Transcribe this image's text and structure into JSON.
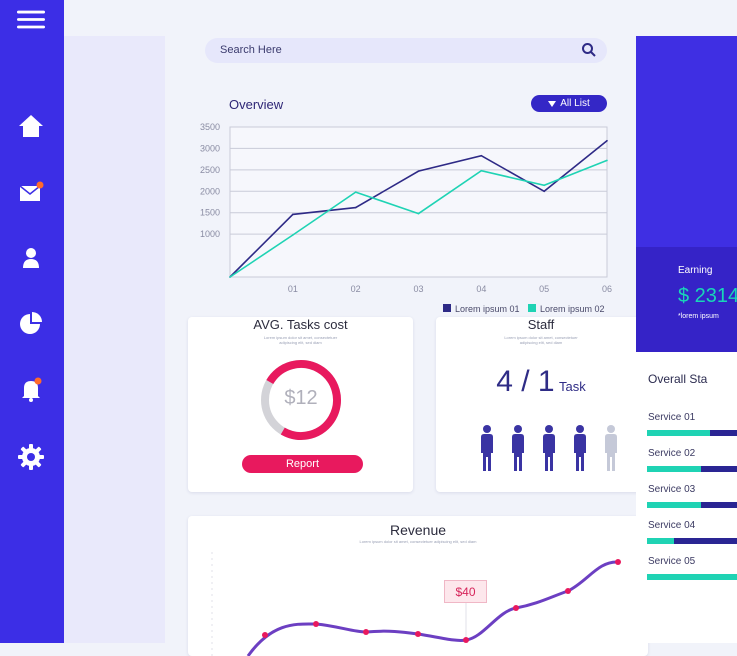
{
  "sidebar": {
    "icons": [
      "menu-icon",
      "home-icon",
      "mail-icon",
      "user-icon",
      "pie-chart-icon",
      "bell-icon",
      "gear-icon"
    ],
    "notification_color": "#ff6a2b"
  },
  "search": {
    "placeholder": "Search Here"
  },
  "overview": {
    "title": "Overview",
    "filter_label": "All List"
  },
  "chart_data": {
    "type": "line",
    "title": "Overview",
    "x": [
      0,
      1,
      2,
      3,
      4,
      5,
      6
    ],
    "x_tick_labels": [
      "01",
      "02",
      "03",
      "04",
      "05",
      "06"
    ],
    "y_ticks": [
      1000,
      1500,
      2000,
      2500,
      3000,
      3500
    ],
    "ylim": [
      0,
      3500
    ],
    "series": [
      {
        "name": "Lorem ipsum 01",
        "color": "#2e2a86",
        "values": [
          0,
          1460,
          1620,
          2470,
          2830,
          2000,
          3180
        ]
      },
      {
        "name": "Lorem ipsum 02",
        "color": "#1fd3b4",
        "values": [
          0,
          980,
          1980,
          1480,
          2480,
          2140,
          2720
        ]
      }
    ],
    "grid": true,
    "legend": "bottom-right"
  },
  "tasks_card": {
    "title": "AVG. Tasks cost",
    "subtitle": "Lorem ipsum dolor sit amet, consectetuer adipiscing elit, sed diam",
    "value": "$12",
    "button_label": "Report",
    "donut_fraction": 0.75,
    "accent_color": "#e8195e"
  },
  "staff_card": {
    "title": "Staff",
    "subtitle": "Lorem ipsum dolor sit amet, consectetuer adipiscing elit, sed diam",
    "count": "4 / 1",
    "unit": "Task",
    "people_active": 4,
    "people_total": 5
  },
  "revenue_card": {
    "title": "Revenue",
    "subtitle": "Lorem ipsum dolor sit amet, consectetuer adipiscing elit, sed diam",
    "tag": "$40"
  },
  "right_panel": {
    "earning_label": "Earning",
    "earning_value": "$ 2314",
    "earning_note": "*lorem ipsum",
    "stats_title": "Overall Sta",
    "services": [
      {
        "label": "Service  01",
        "fill": 0.7
      },
      {
        "label": "Service  02",
        "fill": 0.6
      },
      {
        "label": "Service  03",
        "fill": 0.6
      },
      {
        "label": "Service  04",
        "fill": 0.3
      },
      {
        "label": "Service  05",
        "fill": 1.0
      }
    ]
  }
}
